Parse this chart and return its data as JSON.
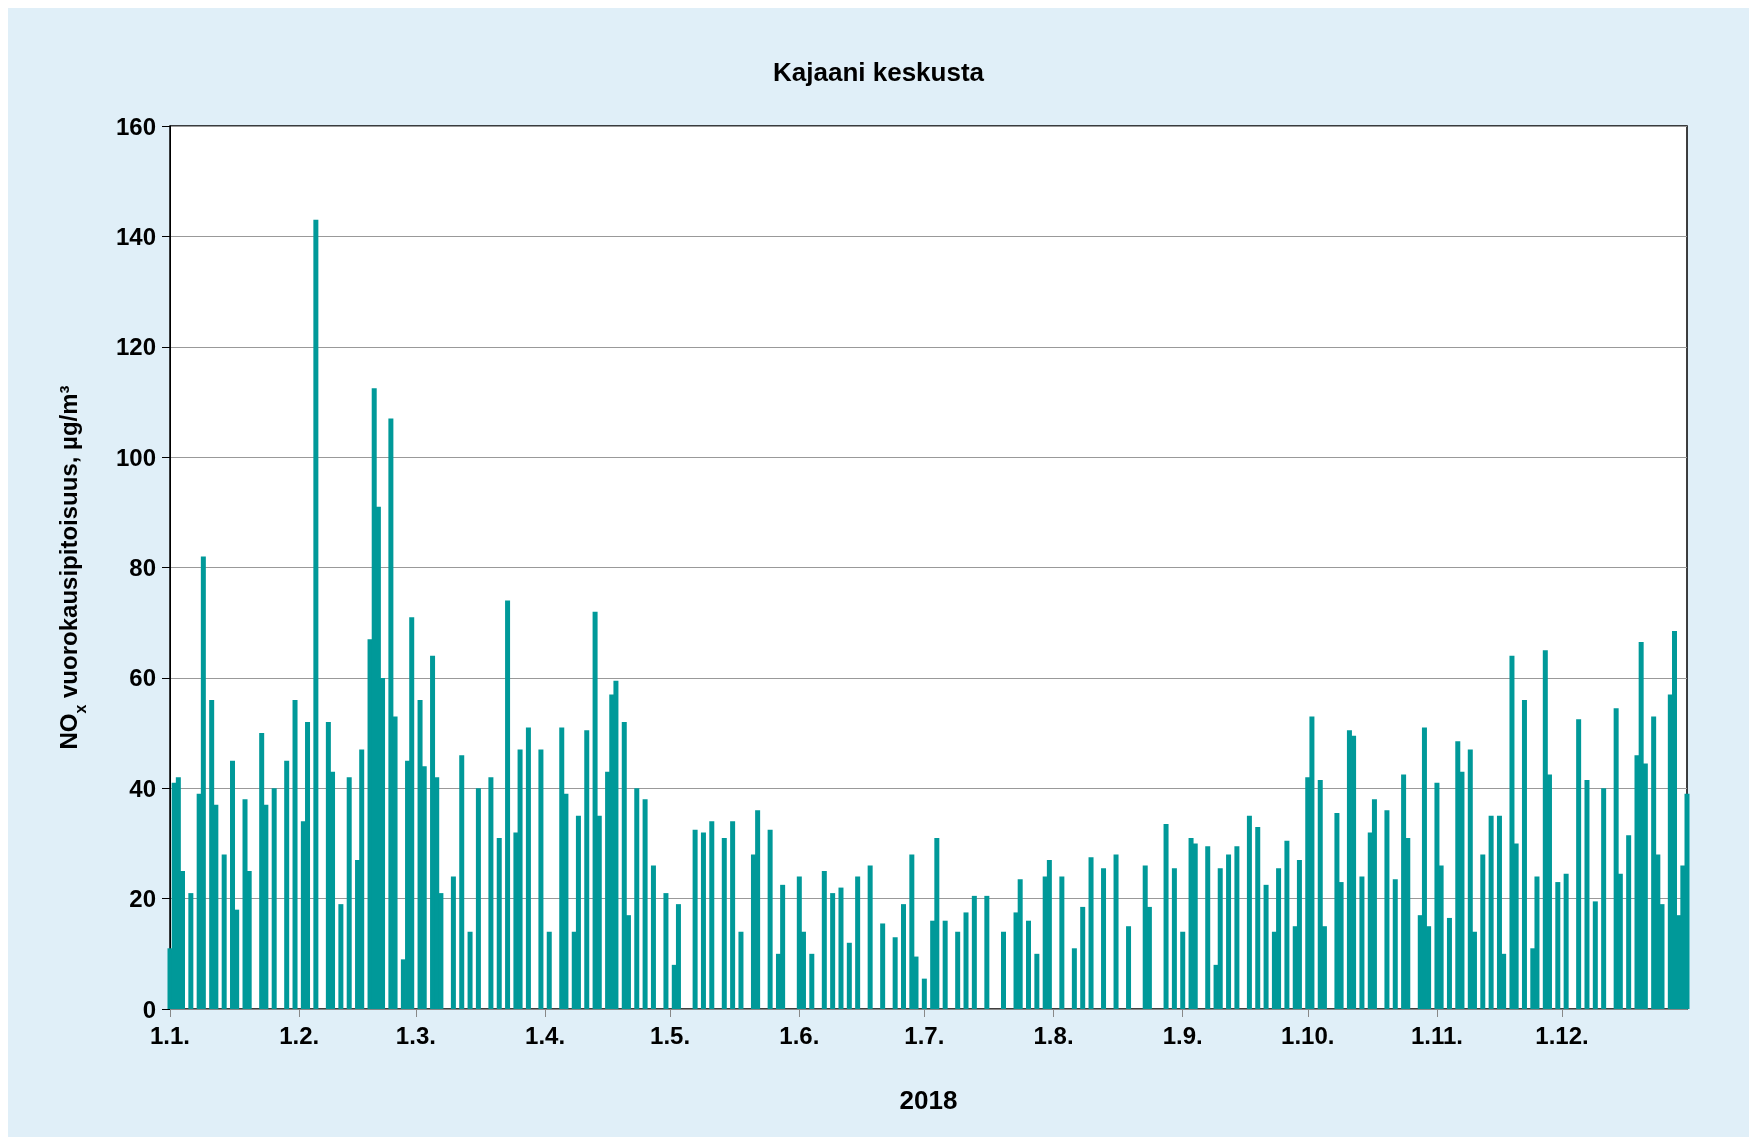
{
  "chart_data": {
    "type": "bar",
    "title": "Kajaani keskusta",
    "xlabel": "2018",
    "ylabel": "NO$_{x}$ vuorokausipitoisuus, µg/m³",
    "x": [
      "2018-01-01",
      "2018-01-02",
      "2018-01-03",
      "2018-01-04",
      "2018-01-06",
      "2018-01-08",
      "2018-01-09",
      "2018-01-11",
      "2018-01-12",
      "2018-01-14",
      "2018-01-16",
      "2018-01-17",
      "2018-01-19",
      "2018-01-20",
      "2018-01-23",
      "2018-01-24",
      "2018-01-26",
      "2018-01-29",
      "2018-01-31",
      "2018-02-02",
      "2018-02-03",
      "2018-02-05",
      "2018-02-08",
      "2018-02-09",
      "2018-02-11",
      "2018-02-13",
      "2018-02-15",
      "2018-02-16",
      "2018-02-18",
      "2018-02-19",
      "2018-02-20",
      "2018-02-21",
      "2018-02-23",
      "2018-02-24",
      "2018-02-26",
      "2018-02-27",
      "2018-02-28",
      "2018-03-02",
      "2018-03-03",
      "2018-03-05",
      "2018-03-06",
      "2018-03-07",
      "2018-03-10",
      "2018-03-12",
      "2018-03-14",
      "2018-03-16",
      "2018-03-19",
      "2018-03-21",
      "2018-03-23",
      "2018-03-25",
      "2018-03-26",
      "2018-03-28",
      "2018-03-31",
      "2018-04-02",
      "2018-04-05",
      "2018-04-06",
      "2018-04-08",
      "2018-04-09",
      "2018-04-11",
      "2018-04-13",
      "2018-04-14",
      "2018-04-16",
      "2018-04-17",
      "2018-04-18",
      "2018-04-20",
      "2018-04-21",
      "2018-04-23",
      "2018-04-25",
      "2018-04-27",
      "2018-04-30",
      "2018-05-02",
      "2018-05-03",
      "2018-05-07",
      "2018-05-09",
      "2018-05-11",
      "2018-05-14",
      "2018-05-16",
      "2018-05-18",
      "2018-05-21",
      "2018-05-22",
      "2018-05-25",
      "2018-05-27",
      "2018-05-28",
      "2018-06-01",
      "2018-06-02",
      "2018-06-04",
      "2018-06-07",
      "2018-06-09",
      "2018-06-11",
      "2018-06-13",
      "2018-06-15",
      "2018-06-18",
      "2018-06-21",
      "2018-06-24",
      "2018-06-26",
      "2018-06-28",
      "2018-06-29",
      "2018-07-01",
      "2018-07-03",
      "2018-07-04",
      "2018-07-06",
      "2018-07-09",
      "2018-07-11",
      "2018-07-13",
      "2018-07-16",
      "2018-07-20",
      "2018-07-23",
      "2018-07-24",
      "2018-07-26",
      "2018-07-28",
      "2018-07-30",
      "2018-07-31",
      "2018-08-03",
      "2018-08-06",
      "2018-08-08",
      "2018-08-10",
      "2018-08-13",
      "2018-08-16",
      "2018-08-19",
      "2018-08-23",
      "2018-08-24",
      "2018-08-28",
      "2018-08-30",
      "2018-09-01",
      "2018-09-03",
      "2018-09-04",
      "2018-09-07",
      "2018-09-09",
      "2018-09-10",
      "2018-09-12",
      "2018-09-14",
      "2018-09-17",
      "2018-09-19",
      "2018-09-21",
      "2018-09-23",
      "2018-09-24",
      "2018-09-26",
      "2018-09-28",
      "2018-09-29",
      "2018-10-01",
      "2018-10-02",
      "2018-10-04",
      "2018-10-05",
      "2018-10-08",
      "2018-10-09",
      "2018-10-11",
      "2018-10-12",
      "2018-10-14",
      "2018-10-16",
      "2018-10-17",
      "2018-10-20",
      "2018-10-22",
      "2018-10-24",
      "2018-10-25",
      "2018-10-28",
      "2018-10-29",
      "2018-10-30",
      "2018-11-01",
      "2018-11-02",
      "2018-11-04",
      "2018-11-06",
      "2018-11-07",
      "2018-11-09",
      "2018-11-10",
      "2018-11-12",
      "2018-11-14",
      "2018-11-16",
      "2018-11-17",
      "2018-11-19",
      "2018-11-20",
      "2018-11-22",
      "2018-11-24",
      "2018-11-25",
      "2018-11-27",
      "2018-11-28",
      "2018-11-30",
      "2018-12-02",
      "2018-12-05",
      "2018-12-07",
      "2018-12-09",
      "2018-12-11",
      "2018-12-14",
      "2018-12-15",
      "2018-12-17",
      "2018-12-19",
      "2018-12-20",
      "2018-12-21",
      "2018-12-23",
      "2018-12-24",
      "2018-12-25",
      "2018-12-27",
      "2018-12-28",
      "2018-12-29",
      "2018-12-30",
      "2018-12-31"
    ],
    "series": [
      {
        "color": "#009999",
        "values": [
          11,
          41,
          42,
          25,
          21,
          39,
          82,
          56,
          37,
          28,
          45,
          18,
          38,
          25,
          50,
          37,
          40,
          45,
          56,
          34,
          52,
          143,
          52,
          43,
          19,
          42,
          27,
          47,
          67,
          112.5,
          91,
          60,
          107,
          53,
          9,
          45,
          71,
          56,
          44,
          64,
          42,
          21,
          24,
          46,
          14,
          40,
          42,
          31,
          74,
          32,
          47,
          51,
          47,
          14,
          51,
          39,
          14,
          35,
          50.5,
          72,
          35,
          43,
          57,
          59.5,
          52,
          17,
          40,
          38,
          26,
          21,
          8,
          19,
          32.5,
          32,
          34,
          31,
          34,
          14,
          28,
          36,
          32.5,
          10,
          22.5,
          24,
          14,
          10,
          25,
          21,
          22,
          12,
          24,
          26,
          15.5,
          13,
          19,
          28,
          9.5,
          5.5,
          16,
          31,
          16,
          14,
          17.5,
          20.5,
          20.5,
          14,
          17.5,
          23.5,
          16,
          10,
          24,
          27,
          24,
          11,
          18.5,
          27.5,
          25.5,
          28,
          15,
          26,
          18.5,
          33.5,
          25.5,
          14,
          31,
          30,
          29.5,
          8,
          25.5,
          28,
          29.5,
          35,
          33,
          22.5,
          14,
          25.5,
          30.5,
          15,
          27,
          42,
          53,
          41.5,
          15,
          35.5,
          23,
          50.5,
          49.5,
          24,
          32,
          38,
          36,
          23.5,
          42.5,
          31,
          17,
          51,
          15,
          41,
          26,
          16.5,
          48.5,
          43,
          47,
          14,
          28,
          35,
          35,
          10,
          64,
          30,
          56,
          11,
          24,
          65,
          42.5,
          23,
          24.5,
          52.5,
          41.5,
          19.5,
          40,
          54.5,
          24.5,
          31.5,
          46,
          66.5,
          44.5,
          53,
          28,
          19,
          57,
          68.5,
          17,
          26,
          39
        ]
      }
    ],
    "xlim": [
      "2018-01-01",
      "2018-12-31"
    ],
    "xticks": [
      {
        "value": "2018-01-01",
        "label": "1.1."
      },
      {
        "value": "2018-02-01",
        "label": "1.2."
      },
      {
        "value": "2018-03-01",
        "label": "1.3."
      },
      {
        "value": "2018-04-01",
        "label": "1.4."
      },
      {
        "value": "2018-05-01",
        "label": "1.5."
      },
      {
        "value": "2018-06-01",
        "label": "1.6."
      },
      {
        "value": "2018-07-01",
        "label": "1.7."
      },
      {
        "value": "2018-08-01",
        "label": "1.8."
      },
      {
        "value": "2018-09-01",
        "label": "1.9."
      },
      {
        "value": "2018-10-01",
        "label": "1.10."
      },
      {
        "value": "2018-11-01",
        "label": "1.11."
      },
      {
        "value": "2018-12-01",
        "label": "1.12."
      }
    ],
    "ylim": [
      0,
      160
    ],
    "yticks": [
      0,
      20,
      40,
      60,
      80,
      100,
      120,
      140,
      160
    ],
    "grid": "y"
  }
}
